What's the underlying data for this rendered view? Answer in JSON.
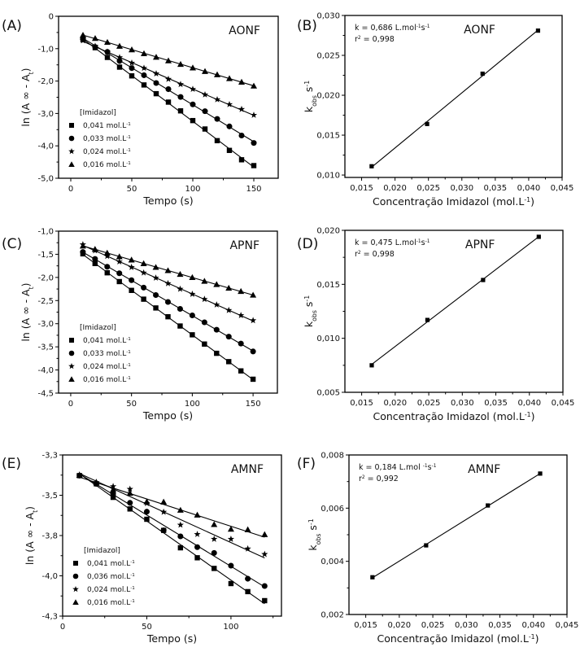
{
  "chart_data": [
    {
      "id": "A",
      "type": "scatter",
      "panel_label": "(A)",
      "annotation": "AONF",
      "xlabel": "Tempo (s)",
      "ylabel": "ln (A∞ - At)",
      "xlim": [
        -10,
        170
      ],
      "ylim": [
        -5.0,
        0
      ],
      "xticks": [
        0,
        50,
        100,
        150
      ],
      "xtick_labels": [
        "0",
        "50",
        "100",
        "150"
      ],
      "yticks": [
        0,
        -1,
        -2,
        -3,
        -4,
        -5
      ],
      "ytick_labels": [
        "0",
        "-1,0",
        "-2,0",
        "-3,0",
        "-4,0",
        "-5,0"
      ],
      "legend_title": "[Imidazol]",
      "legend_position": "lower-left",
      "grid": false,
      "x": [
        10,
        20,
        30,
        40,
        50,
        60,
        70,
        80,
        90,
        100,
        110,
        120,
        130,
        140,
        150
      ],
      "series": [
        {
          "name": "0,041 mol.L-1",
          "marker": "square",
          "values": [
            -0.72,
            -0.97,
            -1.27,
            -1.57,
            -1.84,
            -2.12,
            -2.39,
            -2.65,
            -2.92,
            -3.22,
            -3.48,
            -3.84,
            -4.14,
            -4.43,
            -4.61
          ]
        },
        {
          "name": "0,033 mol.L-1",
          "marker": "circle",
          "values": [
            -0.68,
            -0.95,
            -1.1,
            -1.38,
            -1.6,
            -1.82,
            -2.06,
            -2.25,
            -2.49,
            -2.72,
            -2.93,
            -3.17,
            -3.4,
            -3.68,
            -3.91
          ]
        },
        {
          "name": "0,024 mol.L-1",
          "marker": "star",
          "values": [
            -0.75,
            -0.92,
            -1.1,
            -1.27,
            -1.44,
            -1.6,
            -1.77,
            -1.94,
            -2.1,
            -2.25,
            -2.42,
            -2.57,
            -2.72,
            -2.87,
            -3.05
          ]
        },
        {
          "name": "0,016 mol.L-1",
          "marker": "triangle",
          "values": [
            -0.58,
            -0.68,
            -0.8,
            -0.92,
            -1.03,
            -1.15,
            -1.26,
            -1.37,
            -1.48,
            -1.59,
            -1.7,
            -1.8,
            -1.92,
            -2.03,
            -2.15
          ]
        }
      ]
    },
    {
      "id": "B",
      "type": "scatter",
      "panel_label": "(B)",
      "annotation": "AONF",
      "fit_k": "k = 0,686 L.mol-1s-1",
      "fit_r2": "r2 = 0,998",
      "xlabel": "Concentração Imidazol (mol.L-1)",
      "ylabel": "kobs s-1",
      "xlim": [
        0.0125,
        0.045
      ],
      "ylim": [
        0.0097,
        0.03
      ],
      "xticks": [
        0.015,
        0.02,
        0.025,
        0.03,
        0.035,
        0.04,
        0.045
      ],
      "xtick_labels": [
        "0,015",
        "0,020",
        "0,025",
        "0,030",
        "0,035",
        "0,040",
        "0,045"
      ],
      "yticks": [
        0.01,
        0.015,
        0.02,
        0.025,
        0.03
      ],
      "ytick_labels": [
        "0,010",
        "0,015",
        "0,020",
        "0,025",
        "0,030"
      ],
      "grid": false,
      "x": [
        0.0165,
        0.0248,
        0.0331,
        0.0414
      ],
      "series": [
        {
          "name": "kobs",
          "marker": "square",
          "values": [
            0.0111,
            0.0164,
            0.0227,
            0.0281
          ]
        }
      ]
    },
    {
      "id": "C",
      "type": "scatter",
      "panel_label": "(C)",
      "annotation": "APNF",
      "xlabel": "Tempo (s)",
      "ylabel": "ln (A∞ - At)",
      "xlim": [
        -10,
        170
      ],
      "ylim": [
        -4.5,
        -1.0
      ],
      "xticks": [
        0,
        50,
        100,
        150
      ],
      "xtick_labels": [
        "0",
        "50",
        "100",
        "150"
      ],
      "yticks": [
        -1.0,
        -1.5,
        -2.0,
        -2.5,
        -3.0,
        -3.5,
        -4.0,
        -4.5
      ],
      "ytick_labels": [
        "-1,0",
        "-1,5",
        "-2,0",
        "-2,5",
        "-3,0",
        "-3,5",
        "-4,0",
        "-4,5"
      ],
      "legend_title": "[Imidazol]",
      "legend_position": "lower-left",
      "grid": false,
      "x": [
        10,
        20,
        30,
        40,
        50,
        60,
        70,
        80,
        90,
        100,
        110,
        120,
        130,
        140,
        150
      ],
      "series": [
        {
          "name": "0,041 mol.L-1",
          "marker": "square",
          "values": [
            -1.49,
            -1.7,
            -1.9,
            -2.09,
            -2.28,
            -2.47,
            -2.66,
            -2.85,
            -3.05,
            -3.24,
            -3.44,
            -3.64,
            -3.82,
            -4.02,
            -4.2
          ]
        },
        {
          "name": "0,033 mol.L-1",
          "marker": "circle",
          "values": [
            -1.45,
            -1.6,
            -1.77,
            -1.91,
            -2.06,
            -2.22,
            -2.38,
            -2.53,
            -2.68,
            -2.82,
            -2.97,
            -3.13,
            -3.28,
            -3.43,
            -3.6
          ]
        },
        {
          "name": "0,024 mol.L-1",
          "marker": "star",
          "values": [
            -1.29,
            -1.42,
            -1.54,
            -1.66,
            -1.78,
            -1.9,
            -2.01,
            -2.13,
            -2.25,
            -2.36,
            -2.47,
            -2.59,
            -2.71,
            -2.82,
            -2.93
          ]
        },
        {
          "name": "0,016 mol.L-1",
          "marker": "triangle",
          "values": [
            -1.32,
            -1.39,
            -1.47,
            -1.55,
            -1.62,
            -1.7,
            -1.78,
            -1.85,
            -1.93,
            -2.0,
            -2.08,
            -2.15,
            -2.23,
            -2.3,
            -2.38
          ]
        }
      ]
    },
    {
      "id": "D",
      "type": "scatter",
      "panel_label": "(D)",
      "annotation": "APNF",
      "fit_k": "k = 0,475 L.mol-1s-1",
      "fit_r2": "r2 = 0,998",
      "xlabel": "Concentração Imidazol (mol.L-1)",
      "ylabel": "kobs s-1",
      "xlim": [
        0.0125,
        0.045
      ],
      "ylim": [
        0.005,
        0.02
      ],
      "xticks": [
        0.015,
        0.02,
        0.025,
        0.03,
        0.035,
        0.04,
        0.045
      ],
      "xtick_labels": [
        "0,015",
        "0,020",
        "0,025",
        "0,030",
        "0,035",
        "0,040",
        "0,045"
      ],
      "yticks": [
        0.005,
        0.01,
        0.015,
        0.02
      ],
      "ytick_labels": [
        "0,005",
        "0,010",
        "0,015",
        "0,020"
      ],
      "grid": false,
      "x": [
        0.0165,
        0.0248,
        0.0331,
        0.0414
      ],
      "series": [
        {
          "name": "kobs",
          "marker": "square",
          "values": [
            0.0075,
            0.0117,
            0.0154,
            0.0194
          ]
        }
      ]
    },
    {
      "id": "E",
      "type": "scatter",
      "panel_label": "(E)",
      "annotation": "AMNF",
      "xlabel": "Tempo (s)",
      "ylabel": "ln (A∞ - At)",
      "xlim": [
        0,
        130
      ],
      "ylim": [
        -4.25,
        -3.25
      ],
      "xticks": [
        0,
        50,
        100
      ],
      "xtick_labels": [
        "0",
        "50",
        "100"
      ],
      "yticks": [
        -3.25,
        -3.5,
        -3.75,
        -4.0,
        -4.25
      ],
      "ytick_labels": [
        "-3,3",
        "-3,5",
        "-3,8",
        "-4,0",
        "-4,3"
      ],
      "legend_title": "[Imidazol]",
      "legend_position": "lower-left",
      "grid": false,
      "x": [
        10,
        20,
        30,
        40,
        50,
        60,
        70,
        80,
        90,
        100,
        110,
        120
      ],
      "series": [
        {
          "name": "0,041  mol.L-1",
          "marker": "square",
          "values": [
            -3.378,
            -3.429,
            -3.513,
            -3.585,
            -3.649,
            -3.718,
            -3.826,
            -3.888,
            -3.954,
            -4.048,
            -4.098,
            -4.154
          ]
        },
        {
          "name": "0,036  mol.L-1",
          "marker": "circle",
          "values": [
            -3.378,
            -3.429,
            -3.491,
            -3.547,
            -3.602,
            -3.718,
            -3.755,
            -3.822,
            -3.858,
            -3.937,
            -4.018,
            -4.063
          ]
        },
        {
          "name": "0,024 mol.L-1",
          "marker": "star",
          "values": [
            -3.373,
            -3.42,
            -3.445,
            -3.462,
            -3.55,
            -3.604,
            -3.684,
            -3.742,
            -3.772,
            -3.772,
            -3.832,
            -3.866
          ]
        },
        {
          "name": "0,016  mol.L-1",
          "marker": "triangle",
          "values": [
            -3.375,
            -3.418,
            -3.465,
            -3.487,
            -3.54,
            -3.541,
            -3.592,
            -3.622,
            -3.681,
            -3.71,
            -3.713,
            -3.743
          ]
        }
      ]
    },
    {
      "id": "F",
      "type": "scatter",
      "panel_label": "(F)",
      "annotation": "AMNF",
      "fit_k": "k = 0,184 L.mol  -1s-1",
      "fit_r2": "r2 = 0,992",
      "xlabel": "Concentração Imidazol (mol.L-1)",
      "ylabel": "kobs s-1",
      "xlim": [
        0.0125,
        0.045
      ],
      "ylim": [
        0.002,
        0.008
      ],
      "xticks": [
        0.015,
        0.02,
        0.025,
        0.03,
        0.035,
        0.04,
        0.045
      ],
      "xtick_labels": [
        "0,015",
        "0,020",
        "0,025",
        "0,030",
        "0,035",
        "0,040",
        "0,045"
      ],
      "yticks": [
        0.002,
        0.004,
        0.006,
        0.008
      ],
      "ytick_labels": [
        "0,002",
        "0,004",
        "0,006",
        "0,008"
      ],
      "grid": false,
      "x": [
        0.016,
        0.024,
        0.0332,
        0.041
      ],
      "series": [
        {
          "name": "kobs",
          "marker": "square",
          "values": [
            0.0034,
            0.0046,
            0.0061,
            0.0073
          ]
        }
      ]
    }
  ]
}
